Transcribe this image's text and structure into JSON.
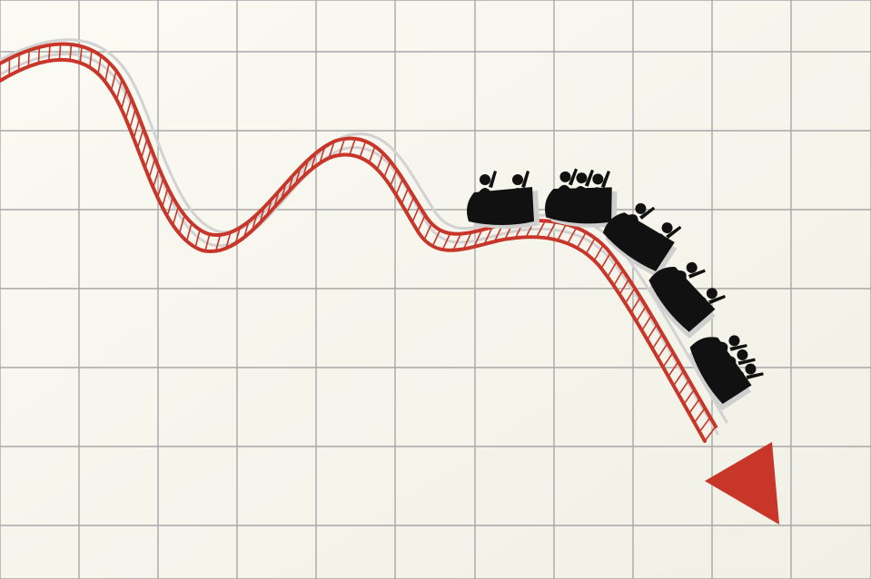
{
  "colors": {
    "background": "#f7f6ee",
    "grid_line": "#a7a7a7",
    "track_red": "#c8362a",
    "track_shadow": "#d2d2d2",
    "tie": "#c8362a",
    "tie_fill": "#f7f6ee",
    "cart": "#111111",
    "cart_shadow": "#cfcfcf",
    "arrow": "#c8362a"
  },
  "icons": {
    "track": "roller-coaster-track-icon",
    "cart": "coaster-cart-icon",
    "rider": "rider-silhouette-icon",
    "arrow": "downward-arrow-head-icon"
  },
  "carts": [
    {
      "riders": 2
    },
    {
      "riders": 3
    },
    {
      "riders": 2
    },
    {
      "riders": 2
    },
    {
      "riders": 3
    }
  ]
}
